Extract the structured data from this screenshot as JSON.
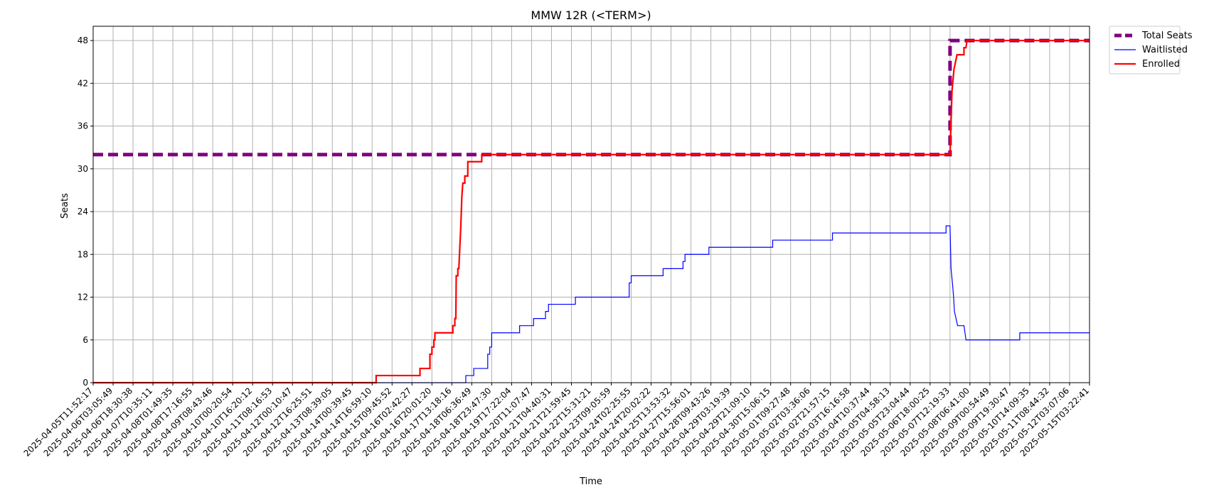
{
  "chart_data": {
    "type": "line",
    "title": "MMW 12R (<TERM>)",
    "xlabel": "Time",
    "ylabel": "Seats",
    "ylim": [
      0,
      50
    ],
    "yticks": [
      0,
      6,
      12,
      18,
      24,
      30,
      36,
      42,
      48
    ],
    "grid": true,
    "legend_position": "outside-top-right",
    "x_ticks": [
      "2025-04-05T11:52:17",
      "2025-04-06T03:05:49",
      "2025-04-06T18:30:38",
      "2025-04-07T10:35:11",
      "2025-04-08T01:49:35",
      "2025-04-08T17:16:55",
      "2025-04-09T08:43:46",
      "2025-04-10T00:20:54",
      "2025-04-10T16:20:12",
      "2025-04-11T08:16:53",
      "2025-04-12T00:10:47",
      "2025-04-12T16:25:51",
      "2025-04-13T08:39:05",
      "2025-04-14T00:39:45",
      "2025-04-14T16:59:10",
      "2025-04-15T09:45:52",
      "2025-04-16T02:42:27",
      "2025-04-16T20:01:20",
      "2025-04-17T13:18:16",
      "2025-04-18T06:36:49",
      "2025-04-18T23:47:30",
      "2025-04-19T17:22:04",
      "2025-04-20T11:07:47",
      "2025-04-21T04:40:31",
      "2025-04-21T21:59:45",
      "2025-04-22T15:31:21",
      "2025-04-23T09:05:59",
      "2025-04-24T02:25:55",
      "2025-04-24T20:02:22",
      "2025-04-25T13:53:32",
      "2025-04-27T15:56:01",
      "2025-04-28T09:43:26",
      "2025-04-29T03:19:39",
      "2025-04-29T21:09:10",
      "2025-04-30T15:06:15",
      "2025-05-01T09:27:48",
      "2025-05-02T03:36:06",
      "2025-05-02T21:57:15",
      "2025-05-03T16:16:58",
      "2025-05-04T10:37:44",
      "2025-05-05T04:58:13",
      "2025-05-05T23:04:44",
      "2025-05-06T18:00:25",
      "2025-05-07T12:19:33",
      "2025-05-08T06:41:00",
      "2025-05-09T00:54:49",
      "2025-05-09T19:30:47",
      "2025-05-10T14:09:35",
      "2025-05-11T08:44:32",
      "2025-05-12T03:07:06",
      "2025-05-15T03:22:41"
    ],
    "series": [
      {
        "name": "Total Seats",
        "color": "#800080",
        "style": "dashed",
        "points": [
          [
            0,
            32
          ],
          [
            43,
            32
          ],
          [
            43,
            48
          ],
          [
            50,
            48
          ]
        ]
      },
      {
        "name": "Waitlisted",
        "color": "#0000ff",
        "style": "solid",
        "points": [
          [
            0,
            0
          ],
          [
            18.7,
            0
          ],
          [
            18.7,
            1
          ],
          [
            19.1,
            1
          ],
          [
            19.1,
            2
          ],
          [
            19.8,
            2
          ],
          [
            19.8,
            4
          ],
          [
            19.9,
            4
          ],
          [
            19.9,
            5
          ],
          [
            20,
            5
          ],
          [
            20,
            7
          ],
          [
            21.4,
            7
          ],
          [
            21.4,
            8
          ],
          [
            22.1,
            8
          ],
          [
            22.1,
            9
          ],
          [
            22.7,
            9
          ],
          [
            22.7,
            10
          ],
          [
            22.85,
            10
          ],
          [
            22.85,
            11
          ],
          [
            24.2,
            11
          ],
          [
            24.2,
            12
          ],
          [
            26.9,
            12
          ],
          [
            26.9,
            14
          ],
          [
            27,
            14
          ],
          [
            27,
            15
          ],
          [
            28.6,
            15
          ],
          [
            28.6,
            16
          ],
          [
            29.6,
            16
          ],
          [
            29.6,
            17
          ],
          [
            29.7,
            17
          ],
          [
            29.7,
            18
          ],
          [
            30.9,
            18
          ],
          [
            30.9,
            19
          ],
          [
            34.1,
            19
          ],
          [
            34.1,
            20
          ],
          [
            37.1,
            20
          ],
          [
            37.1,
            21
          ],
          [
            42.8,
            21
          ],
          [
            42.8,
            22
          ],
          [
            43.0,
            22
          ],
          [
            43.05,
            16
          ],
          [
            43.12,
            14
          ],
          [
            43.18,
            12
          ],
          [
            43.22,
            10
          ],
          [
            43.3,
            9
          ],
          [
            43.38,
            8
          ],
          [
            43.7,
            8
          ],
          [
            43.75,
            7
          ],
          [
            43.8,
            6
          ],
          [
            46.5,
            6
          ],
          [
            46.5,
            7
          ],
          [
            50,
            7
          ]
        ]
      },
      {
        "name": "Enrolled",
        "color": "#ff0000",
        "style": "solid",
        "points": [
          [
            0,
            0
          ],
          [
            14.2,
            0
          ],
          [
            14.2,
            1
          ],
          [
            16.4,
            1
          ],
          [
            16.4,
            2
          ],
          [
            16.9,
            2
          ],
          [
            16.9,
            4
          ],
          [
            17,
            4
          ],
          [
            17,
            5
          ],
          [
            17.1,
            5
          ],
          [
            17.1,
            6
          ],
          [
            17.15,
            6
          ],
          [
            17.15,
            7
          ],
          [
            18.05,
            7
          ],
          [
            18.05,
            8
          ],
          [
            18.15,
            8
          ],
          [
            18.15,
            9
          ],
          [
            18.2,
            9
          ],
          [
            18.22,
            15
          ],
          [
            18.3,
            15
          ],
          [
            18.3,
            16
          ],
          [
            18.35,
            16
          ],
          [
            18.45,
            22
          ],
          [
            18.5,
            26
          ],
          [
            18.55,
            28
          ],
          [
            18.65,
            28
          ],
          [
            18.65,
            29
          ],
          [
            18.8,
            29
          ],
          [
            18.8,
            31
          ],
          [
            19.5,
            31
          ],
          [
            19.5,
            32
          ],
          [
            43.0,
            32
          ],
          [
            43.1,
            41
          ],
          [
            43.2,
            44
          ],
          [
            43.35,
            46
          ],
          [
            43.7,
            46
          ],
          [
            43.7,
            47
          ],
          [
            43.8,
            47
          ],
          [
            43.85,
            48
          ],
          [
            50,
            48
          ]
        ]
      }
    ]
  }
}
